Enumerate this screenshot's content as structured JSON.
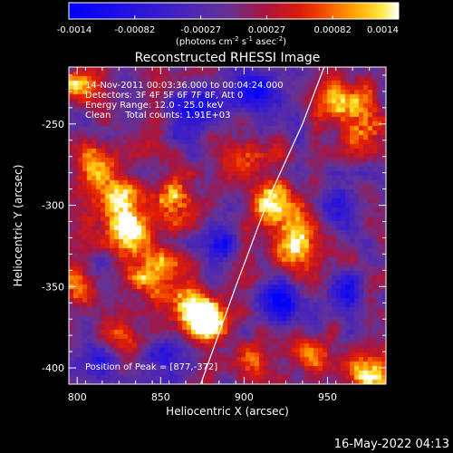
{
  "chart_data": {
    "type": "heatmap",
    "title": "Reconstructed RHESSI Image",
    "colorbar": {
      "ticks": [
        "-0.0014",
        "-0.00082",
        "-0.00027",
        "0.00027",
        "0.00082",
        "0.0014"
      ],
      "unit_main": "(photons cm",
      "unit_exp1": "-2",
      "unit_mid": " s",
      "unit_exp2": "-1",
      "unit_mid2": " asec",
      "unit_exp3": "-2",
      "unit_end": ")",
      "range": [
        -0.0014,
        0.0014
      ]
    },
    "xlabel": "Heliocentric X (arcsec)",
    "ylabel": "Heliocentric Y (arcsec)",
    "xlim": [
      795,
      985
    ],
    "ylim": [
      -410,
      -215
    ],
    "x_ticks": [
      "800",
      "850",
      "900",
      "950"
    ],
    "x_tick_values": [
      800,
      850,
      900,
      950
    ],
    "y_ticks": [
      "-250",
      "-300",
      "-350",
      "-400"
    ],
    "y_tick_values": [
      -250,
      -300,
      -350,
      -400
    ],
    "annotations": {
      "time": "14-Nov-2011 00:03:36.000 to 00:04:24.000",
      "detectors": "Detectors: 3F 4F 5F 6F 7F 8F, Att 0",
      "energy": "Energy Range: 12.0 - 25.0 keV",
      "clean": "Clean     Total counts: 1.91E+03",
      "peak": "Position of Peak = [877,-372]"
    },
    "limb_points": [
      [
        874,
        -410
      ],
      [
        895,
        -350
      ],
      [
        915,
        -295
      ],
      [
        935,
        -250
      ],
      [
        948,
        -215
      ]
    ],
    "blobs": [
      {
        "x": 825,
        "y": -300,
        "sx": 10,
        "sy": 12,
        "amp": 0.0014
      },
      {
        "x": 835,
        "y": -318,
        "sx": 9,
        "sy": 9,
        "amp": 0.0013
      },
      {
        "x": 845,
        "y": -340,
        "sx": 10,
        "sy": 12,
        "amp": 0.0012
      },
      {
        "x": 870,
        "y": -365,
        "sx": 11,
        "sy": 9,
        "amp": 0.0014
      },
      {
        "x": 878,
        "y": -372,
        "sx": 7,
        "sy": 7,
        "amp": 0.0015
      },
      {
        "x": 856,
        "y": -298,
        "sx": 9,
        "sy": 9,
        "amp": 0.0013
      },
      {
        "x": 812,
        "y": -275,
        "sx": 8,
        "sy": 10,
        "amp": 0.0011
      },
      {
        "x": 800,
        "y": -350,
        "sx": 7,
        "sy": 9,
        "amp": 0.0009
      },
      {
        "x": 918,
        "y": -300,
        "sx": 10,
        "sy": 12,
        "amp": 0.0013
      },
      {
        "x": 930,
        "y": -325,
        "sx": 10,
        "sy": 11,
        "amp": 0.0013
      },
      {
        "x": 905,
        "y": -270,
        "sx": 9,
        "sy": 8,
        "amp": 0.001
      },
      {
        "x": 960,
        "y": -238,
        "sx": 12,
        "sy": 10,
        "amp": 0.0012
      },
      {
        "x": 975,
        "y": -255,
        "sx": 8,
        "sy": 9,
        "amp": 0.001
      },
      {
        "x": 940,
        "y": -390,
        "sx": 8,
        "sy": 7,
        "amp": 0.0011
      },
      {
        "x": 975,
        "y": -405,
        "sx": 9,
        "sy": 8,
        "amp": 0.0013
      },
      {
        "x": 905,
        "y": -395,
        "sx": 7,
        "sy": 7,
        "amp": 0.0008
      },
      {
        "x": 830,
        "y": -385,
        "sx": 9,
        "sy": 7,
        "amp": 0.0008
      },
      {
        "x": 800,
        "y": -225,
        "sx": 9,
        "sy": 7,
        "amp": 0.001
      },
      {
        "x": 870,
        "y": -240,
        "sx": 10,
        "sy": 9,
        "amp": -0.0012
      },
      {
        "x": 905,
        "y": -228,
        "sx": 9,
        "sy": 8,
        "amp": -0.0012
      },
      {
        "x": 955,
        "y": -300,
        "sx": 9,
        "sy": 9,
        "amp": -0.0012
      },
      {
        "x": 925,
        "y": -360,
        "sx": 11,
        "sy": 9,
        "amp": -0.0013
      },
      {
        "x": 960,
        "y": -355,
        "sx": 8,
        "sy": 8,
        "amp": -0.001
      },
      {
        "x": 850,
        "y": -395,
        "sx": 9,
        "sy": 7,
        "amp": -0.0009
      },
      {
        "x": 885,
        "y": -325,
        "sx": 7,
        "sy": 8,
        "amp": -0.0011
      },
      {
        "x": 815,
        "y": -395,
        "sx": 8,
        "sy": 7,
        "amp": -0.0008
      }
    ]
  },
  "footer": {
    "date": "16-May-2022 04:13"
  },
  "colors": {
    "neg": "#0000ff",
    "mid": "#6a3aa0",
    "pos": "#ffffff"
  }
}
